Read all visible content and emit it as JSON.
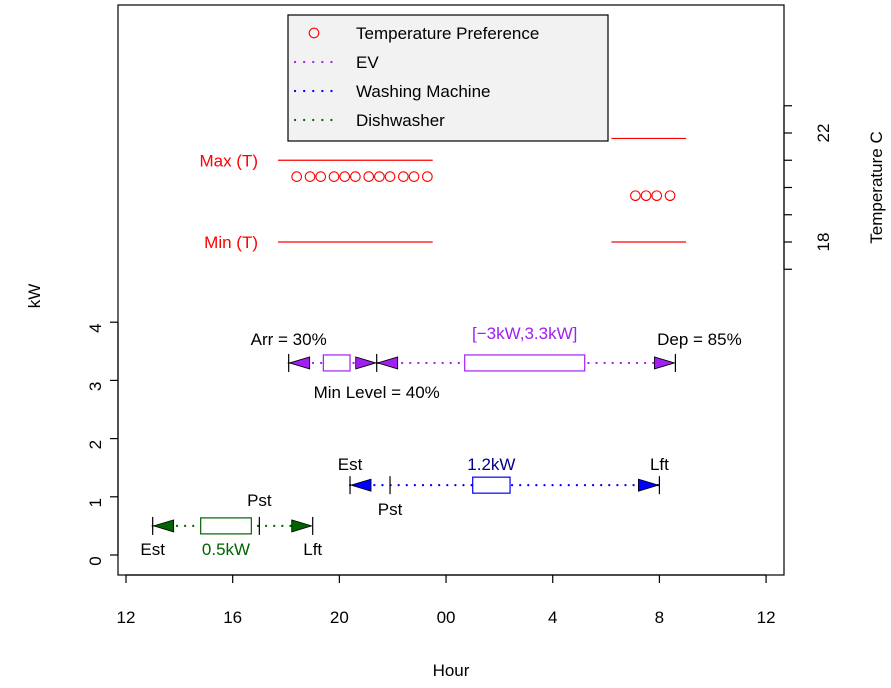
{
  "chart_data": {
    "type": "line",
    "xlabel": "Hour",
    "ylabel": "kW",
    "y2label": "Temperature C",
    "x_ticks": [
      {
        "hour": 12,
        "label": "12"
      },
      {
        "hour": 16,
        "label": "16"
      },
      {
        "hour": 20,
        "label": "20"
      },
      {
        "hour": 24,
        "label": "00"
      },
      {
        "hour": 28,
        "label": "4"
      },
      {
        "hour": 32,
        "label": "8"
      },
      {
        "hour": 36,
        "label": "12"
      }
    ],
    "y_ticks": [
      0,
      1,
      2,
      3,
      4
    ],
    "temp_ticks": [
      {
        "value": 17,
        "label": ""
      },
      {
        "value": 18,
        "label": "18"
      },
      {
        "value": 19,
        "label": ""
      },
      {
        "value": 20,
        "label": ""
      },
      {
        "value": 21,
        "label": ""
      },
      {
        "value": 22,
        "label": "22"
      },
      {
        "value": 23,
        "label": ""
      }
    ],
    "legend": {
      "position": "top",
      "entries": [
        {
          "label": "Temperature Preference",
          "symbol": "circle",
          "color": "#ff0000"
        },
        {
          "label": "EV",
          "symbol": "dotted",
          "color": "#a020f0"
        },
        {
          "label": "Washing Machine",
          "symbol": "dotted",
          "color": "#0000ff"
        },
        {
          "label": "Dishwasher",
          "symbol": "dotted",
          "color": "#006400"
        }
      ]
    },
    "temperature": {
      "color": "#ff0000",
      "max_label": "Max (T)",
      "min_label": "Min (T)",
      "max_segments": [
        {
          "x0": 17.7,
          "x1": 23.5,
          "value": 21
        },
        {
          "x0": 30.2,
          "x1": 33,
          "value": 21.8
        }
      ],
      "min_segments": [
        {
          "x0": 17.7,
          "x1": 23.5,
          "value": 18
        },
        {
          "x0": 30.2,
          "x1": 33,
          "value": 18
        }
      ],
      "preferences": [
        {
          "hour": 18.4,
          "value": 20.4
        },
        {
          "hour": 18.9,
          "value": 20.4
        },
        {
          "hour": 19.3,
          "value": 20.4
        },
        {
          "hour": 19.8,
          "value": 20.4
        },
        {
          "hour": 20.2,
          "value": 20.4
        },
        {
          "hour": 20.6,
          "value": 20.4
        },
        {
          "hour": 21.1,
          "value": 20.4
        },
        {
          "hour": 21.5,
          "value": 20.4
        },
        {
          "hour": 21.9,
          "value": 20.4
        },
        {
          "hour": 22.4,
          "value": 20.4
        },
        {
          "hour": 22.8,
          "value": 20.4
        },
        {
          "hour": 23.3,
          "value": 20.4
        },
        {
          "hour": 31.1,
          "value": 19.7
        },
        {
          "hour": 31.5,
          "value": 19.7
        },
        {
          "hour": 31.9,
          "value": 19.7
        },
        {
          "hour": 32.4,
          "value": 19.7
        }
      ]
    },
    "appliances": [
      {
        "name": "EV",
        "color": "#a020f0",
        "level": 3.3,
        "start": 18.1,
        "end": 32.6,
        "box1": {
          "x0": 19.4,
          "x1": 20.4
        },
        "box2": {
          "x0": 24.7,
          "x1": 29.2
        },
        "mid_marker": 21.4,
        "arrival_label": "Arr = 30%",
        "departure_label": "Dep = 85%",
        "min_label": "Min Level = 40%",
        "range_label": "[−3kW,3.3kW]"
      },
      {
        "name": "Washing Machine",
        "color": "#0000ff",
        "label_color": "#00008b",
        "level": 1.2,
        "est": 20.4,
        "pst": 21.9,
        "lft": 32,
        "box": {
          "x0": 25,
          "x1": 26.4
        },
        "est_label": "Est",
        "pst_label": "Pst",
        "lft_label": "Lft",
        "power_label": "1.2kW"
      },
      {
        "name": "Dishwasher",
        "color": "#006400",
        "level": 0.5,
        "est": 13,
        "pst": 17,
        "lft": 19,
        "box": {
          "x0": 14.8,
          "x1": 16.7
        },
        "est_label": "Est",
        "pst_label": "Pst",
        "lft_label": "Lft",
        "power_label": "0.5kW"
      }
    ]
  }
}
